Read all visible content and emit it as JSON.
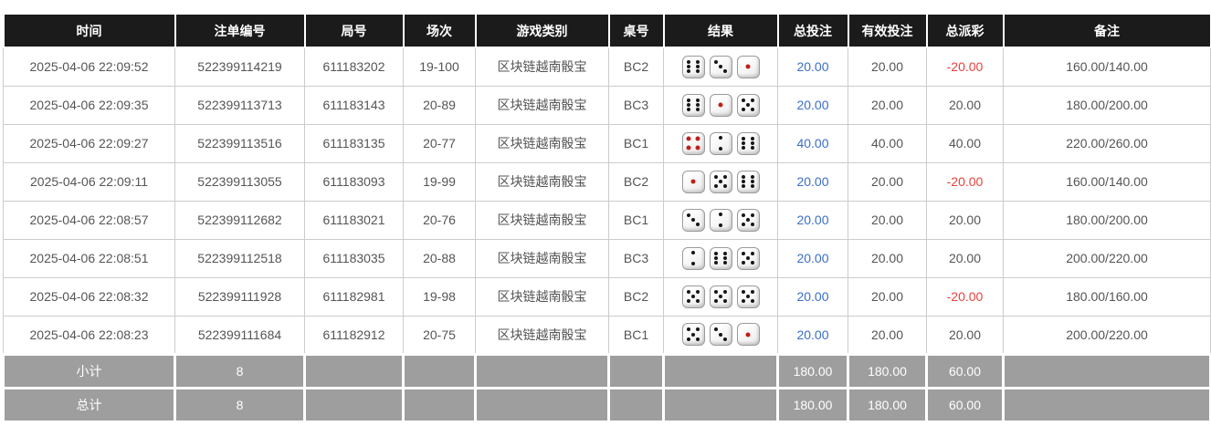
{
  "columns": [
    "时间",
    "注单编号",
    "局号",
    "场次",
    "游戏类别",
    "桌号",
    "结果",
    "总投注",
    "有效投注",
    "总派彩",
    "备注"
  ],
  "rows": [
    {
      "time": "2025-04-06 22:09:52",
      "bet_id": "522399114219",
      "round_id": "611183202",
      "session": "19-100",
      "game": "区块链越南骰宝",
      "table_no": "BC2",
      "dice": [
        6,
        3,
        1
      ],
      "total_bet": "20.00",
      "valid_bet": "20.00",
      "payout": "-20.00",
      "remark": "160.00/140.00"
    },
    {
      "time": "2025-04-06 22:09:35",
      "bet_id": "522399113713",
      "round_id": "611183143",
      "session": "20-89",
      "game": "区块链越南骰宝",
      "table_no": "BC3",
      "dice": [
        6,
        1,
        5
      ],
      "total_bet": "20.00",
      "valid_bet": "20.00",
      "payout": "20.00",
      "remark": "180.00/200.00"
    },
    {
      "time": "2025-04-06 22:09:27",
      "bet_id": "522399113516",
      "round_id": "611183135",
      "session": "20-77",
      "game": "区块链越南骰宝",
      "table_no": "BC1",
      "dice": [
        4,
        2,
        6
      ],
      "total_bet": "40.00",
      "valid_bet": "40.00",
      "payout": "40.00",
      "remark": "220.00/260.00"
    },
    {
      "time": "2025-04-06 22:09:11",
      "bet_id": "522399113055",
      "round_id": "611183093",
      "session": "19-99",
      "game": "区块链越南骰宝",
      "table_no": "BC2",
      "dice": [
        1,
        5,
        6
      ],
      "total_bet": "20.00",
      "valid_bet": "20.00",
      "payout": "-20.00",
      "remark": "160.00/140.00"
    },
    {
      "time": "2025-04-06 22:08:57",
      "bet_id": "522399112682",
      "round_id": "611183021",
      "session": "20-76",
      "game": "区块链越南骰宝",
      "table_no": "BC1",
      "dice": [
        3,
        2,
        5
      ],
      "total_bet": "20.00",
      "valid_bet": "20.00",
      "payout": "20.00",
      "remark": "180.00/200.00"
    },
    {
      "time": "2025-04-06 22:08:51",
      "bet_id": "522399112518",
      "round_id": "611183035",
      "session": "20-88",
      "game": "区块链越南骰宝",
      "table_no": "BC3",
      "dice": [
        2,
        6,
        5
      ],
      "total_bet": "20.00",
      "valid_bet": "20.00",
      "payout": "20.00",
      "remark": "200.00/220.00"
    },
    {
      "time": "2025-04-06 22:08:32",
      "bet_id": "522399111928",
      "round_id": "611182981",
      "session": "19-98",
      "game": "区块链越南骰宝",
      "table_no": "BC2",
      "dice": [
        5,
        5,
        5
      ],
      "total_bet": "20.00",
      "valid_bet": "20.00",
      "payout": "-20.00",
      "remark": "180.00/160.00"
    },
    {
      "time": "2025-04-06 22:08:23",
      "bet_id": "522399111684",
      "round_id": "611182912",
      "session": "20-75",
      "game": "区块链越南骰宝",
      "table_no": "BC1",
      "dice": [
        5,
        3,
        1
      ],
      "total_bet": "20.00",
      "valid_bet": "20.00",
      "payout": "20.00",
      "remark": "200.00/220.00"
    }
  ],
  "footer": [
    {
      "label": "小计",
      "count": "8",
      "total_bet": "180.00",
      "valid_bet": "180.00",
      "payout": "60.00"
    },
    {
      "label": "总计",
      "count": "8",
      "total_bet": "180.00",
      "valid_bet": "180.00",
      "payout": "60.00"
    }
  ],
  "colors": {
    "header_bg": "#1b1b1b",
    "footer_bg": "#9e9e9e",
    "total_bet_blue": "#3a6ec6",
    "negative_red": "#e8413c",
    "pip_black": "#161616",
    "pip_red": "#c21f1a"
  }
}
